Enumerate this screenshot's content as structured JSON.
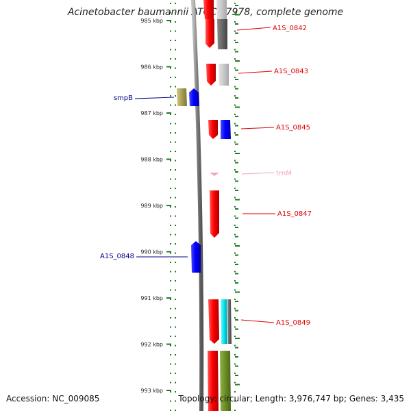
{
  "header": {
    "title": "Acinetobacter baumannii ATCC 17978, complete genome"
  },
  "footer": {
    "accession": "Accession: NC_009085",
    "topology": "Topology: circular; Length: 3,976,747 bp; Genes: 3,435"
  },
  "ruler": {
    "ticks": [
      {
        "label": "985 kbp",
        "kbp": 985
      },
      {
        "label": "986 kbp",
        "kbp": 986
      },
      {
        "label": "987 kbp",
        "kbp": 987
      },
      {
        "label": "988 kbp",
        "kbp": 988
      },
      {
        "label": "989 kbp",
        "kbp": 989
      },
      {
        "label": "990 kbp",
        "kbp": 990
      },
      {
        "label": "991 kbp",
        "kbp": 991
      },
      {
        "label": "992 kbp",
        "kbp": 992
      },
      {
        "label": "993 kbp",
        "kbp": 993
      }
    ]
  },
  "genes": [
    {
      "label": "A1S_0842",
      "color": "#e00000",
      "strand": "+"
    },
    {
      "label": "A1S_0843",
      "color": "#e00000",
      "strand": "+"
    },
    {
      "label": "smpB",
      "color": "#00008b",
      "strand": "-"
    },
    {
      "label": "A1S_0845",
      "color": "#e00000",
      "strand": "+"
    },
    {
      "label": "trnM",
      "color": "#f0a0c8",
      "strand": "+"
    },
    {
      "label": "A1S_0847",
      "color": "#e00000",
      "strand": "+"
    },
    {
      "label": "A1S_0848",
      "color": "#00008b",
      "strand": "-"
    },
    {
      "label": "A1S_0849",
      "color": "#e00000",
      "strand": "+"
    }
  ],
  "colors": {
    "cds_plus": "#ff0000",
    "cds_minus": "#0000ff",
    "trna": "#f4a3c8",
    "backbone": "#808080",
    "tick": "#1a7a1a",
    "cog_gray": "#666666",
    "cog_lightgray": "#c8c8c8",
    "cog_blue": "#0000ee",
    "cog_cyan": "#00e5ee",
    "cog_olive": "#6b8e23",
    "cog_khaki": "#a89f55"
  }
}
